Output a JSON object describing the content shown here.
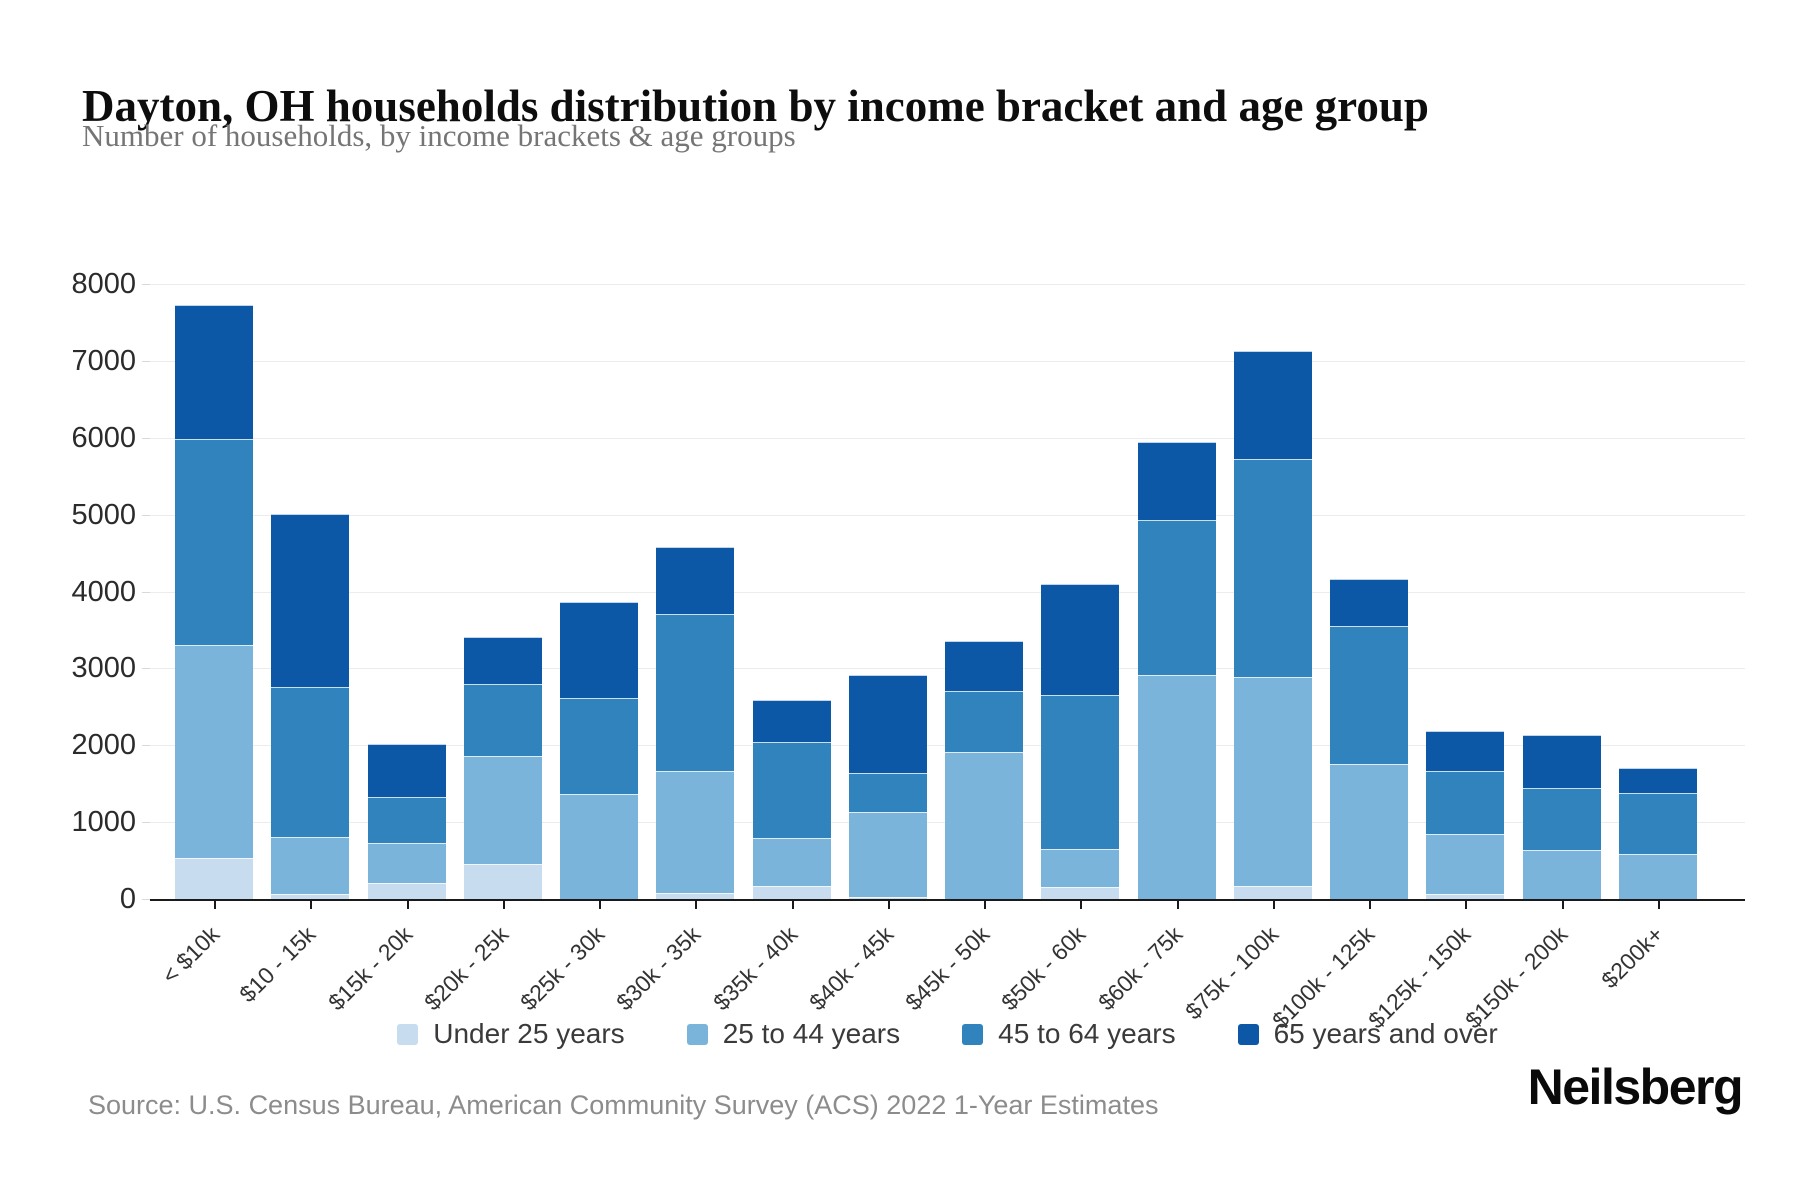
{
  "header": {
    "title": "Dayton, OH households distribution by income bracket and age group",
    "subtitle": "Number of households, by income brackets & age groups"
  },
  "chart_data": {
    "type": "bar",
    "stacked": true,
    "title": "Dayton, OH households distribution by income bracket and age group",
    "subtitle": "Number of households, by income brackets & age groups",
    "categories": [
      "< $10k",
      "$10 - 15k",
      "$15k - 20k",
      "$20k - 25k",
      "$25k - 30k",
      "$30k - 35k",
      "$35k - 40k",
      "$40k - 45k",
      "$45k - 50k",
      "$50k - 60k",
      "$60k - 75k",
      "$75k - 100k",
      "$100k - 125k",
      "$125k - 150k",
      "$150k - 200k",
      "$200k+"
    ],
    "series": [
      {
        "name": "Under 25 years",
        "color": "#c7dcee",
        "values": [
          535,
          70,
          210,
          460,
          0,
          80,
          170,
          20,
          0,
          150,
          0,
          175,
          0,
          70,
          0,
          0
        ]
      },
      {
        "name": "25 to 44 years",
        "color": "#7ab4da",
        "values": [
          2770,
          735,
          520,
          1400,
          1360,
          1580,
          625,
          1110,
          1910,
          500,
          2920,
          2715,
          1750,
          775,
          640,
          590
        ]
      },
      {
        "name": "45 to 64 years",
        "color": "#3183bd",
        "values": [
          2685,
          1955,
          600,
          940,
          1250,
          2050,
          1245,
          505,
          800,
          2010,
          2015,
          2830,
          1800,
          815,
          800,
          790
        ]
      },
      {
        "name": "65 years and over",
        "color": "#0c57a6",
        "values": [
          1740,
          2250,
          690,
          610,
          1250,
          870,
          550,
          1280,
          640,
          1440,
          1015,
          1410,
          610,
          530,
          690,
          330
        ]
      }
    ],
    "ylim": [
      0,
      8000
    ],
    "yticks": [
      0,
      1000,
      2000,
      3000,
      4000,
      5000,
      6000,
      7000,
      8000
    ],
    "xlabel": "",
    "ylabel": "",
    "grid": "horizontal",
    "legend_position": "bottom"
  },
  "footer": {
    "source": "Source: U.S. Census Bureau, American Community Survey (ACS) 2022 1-Year Estimates",
    "logo": "Neilsberg"
  }
}
